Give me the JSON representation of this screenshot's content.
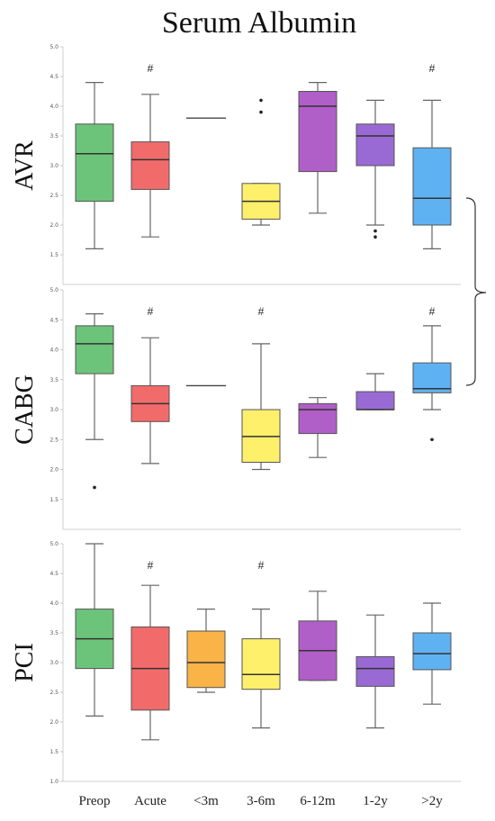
{
  "chart_data": {
    "type": "box",
    "title": "Serum Albumin",
    "categories": [
      "Preop",
      "Acute",
      "<3m",
      "3-6m",
      "6-12m",
      "1-2y",
      ">2y"
    ],
    "colors": [
      "#6cc47a",
      "#f26b6b",
      "#f9b347",
      "#fff06c",
      "#b05ec8",
      "#9a6ad4",
      "#5fb2f2"
    ],
    "y_ticks": [
      "1.5",
      "2.0",
      "2.5",
      "3.0",
      "3.5",
      "4.0",
      "4.5",
      "5.0"
    ],
    "panels": [
      {
        "label": "AVR",
        "ylim": [
          1.0,
          5.0
        ],
        "y_ticks": [
          "1.5",
          "2.0",
          "2.5",
          "3.0",
          "3.5",
          "4.0",
          "4.5",
          "5.0"
        ],
        "significance_marker": "#",
        "boxes": [
          {
            "category": "Preop",
            "min": 1.6,
            "q1": 2.4,
            "median": 3.2,
            "q3": 3.7,
            "max": 4.4,
            "outliers": [],
            "significant": false
          },
          {
            "category": "Acute",
            "min": 1.8,
            "q1": 2.6,
            "median": 3.1,
            "q3": 3.4,
            "max": 4.2,
            "outliers": [],
            "significant": true
          },
          {
            "category": "<3m",
            "single_value": 3.8,
            "outliers": [],
            "significant": false
          },
          {
            "category": "3-6m",
            "min": 2.0,
            "q1": 2.1,
            "median": 2.4,
            "q3": 2.7,
            "max": 2.7,
            "outliers": [
              3.9,
              4.1
            ],
            "significant": false
          },
          {
            "category": "6-12m",
            "min": 2.2,
            "q1": 2.9,
            "median": 4.0,
            "q3": 4.25,
            "max": 4.4,
            "outliers": [],
            "significant": false
          },
          {
            "category": "1-2y",
            "min": 2.0,
            "q1": 3.0,
            "median": 3.5,
            "q3": 3.7,
            "max": 4.1,
            "outliers": [
              1.8,
              1.9
            ],
            "significant": false
          },
          {
            "category": ">2y",
            "min": 1.6,
            "q1": 2.0,
            "median": 2.45,
            "q3": 3.3,
            "max": 4.1,
            "outliers": [],
            "significant": true
          }
        ]
      },
      {
        "label": "CABG",
        "ylim": [
          1.0,
          5.0
        ],
        "y_ticks": [
          "1.5",
          "2.0",
          "2.5",
          "3.0",
          "3.5",
          "4.0",
          "4.5",
          "5.0"
        ],
        "significance_marker": "#",
        "boxes": [
          {
            "category": "Preop",
            "min": 2.5,
            "q1": 3.6,
            "median": 4.1,
            "q3": 4.4,
            "max": 4.6,
            "outliers": [
              1.7
            ],
            "significant": false
          },
          {
            "category": "Acute",
            "min": 2.1,
            "q1": 2.8,
            "median": 3.1,
            "q3": 3.4,
            "max": 4.2,
            "outliers": [],
            "significant": true
          },
          {
            "category": "<3m",
            "single_value": 3.4,
            "outliers": [],
            "significant": false
          },
          {
            "category": "3-6m",
            "min": 2.0,
            "q1": 2.12,
            "median": 2.55,
            "q3": 3.0,
            "max": 4.1,
            "outliers": [],
            "significant": true
          },
          {
            "category": "6-12m",
            "min": 2.2,
            "q1": 2.6,
            "median": 3.0,
            "q3": 3.1,
            "max": 3.2,
            "outliers": [],
            "significant": false
          },
          {
            "category": "1-2y",
            "min": 3.0,
            "q1": 3.0,
            "median": 3.0,
            "q3": 3.3,
            "max": 3.6,
            "outliers": [],
            "significant": false
          },
          {
            "category": ">2y",
            "min": 3.0,
            "q1": 3.28,
            "median": 3.35,
            "q3": 3.78,
            "max": 4.4,
            "outliers": [
              2.5
            ],
            "significant": true
          }
        ]
      },
      {
        "label": "PCI",
        "ylim": [
          1.0,
          5.0
        ],
        "y_ticks": [
          "1.0",
          "1.5",
          "2.0",
          "2.5",
          "3.0",
          "3.5",
          "4.0",
          "4.5",
          "5.0"
        ],
        "significance_marker": "#",
        "boxes": [
          {
            "category": "Preop",
            "min": 2.1,
            "q1": 2.9,
            "median": 3.4,
            "q3": 3.9,
            "max": 5.0,
            "outliers": [],
            "significant": false
          },
          {
            "category": "Acute",
            "min": 1.7,
            "q1": 2.2,
            "median": 2.9,
            "q3": 3.6,
            "max": 4.3,
            "outliers": [],
            "significant": true
          },
          {
            "category": "<3m",
            "min": 2.5,
            "q1": 2.58,
            "median": 3.0,
            "q3": 3.53,
            "max": 3.9,
            "outliers": [],
            "significant": false
          },
          {
            "category": "3-6m",
            "min": 1.9,
            "q1": 2.55,
            "median": 2.8,
            "q3": 3.4,
            "max": 3.9,
            "outliers": [],
            "significant": true
          },
          {
            "category": "6-12m",
            "min": 2.7,
            "q1": 2.7,
            "median": 3.2,
            "q3": 3.7,
            "max": 4.2,
            "outliers": [],
            "significant": false
          },
          {
            "category": "1-2y",
            "min": 1.9,
            "q1": 2.6,
            "median": 2.9,
            "q3": 3.1,
            "max": 3.8,
            "outliers": [],
            "significant": false
          },
          {
            "category": ">2y",
            "min": 2.3,
            "q1": 2.88,
            "median": 3.15,
            "q3": 3.5,
            "max": 4.0,
            "outliers": [],
            "significant": false
          }
        ]
      }
    ]
  }
}
